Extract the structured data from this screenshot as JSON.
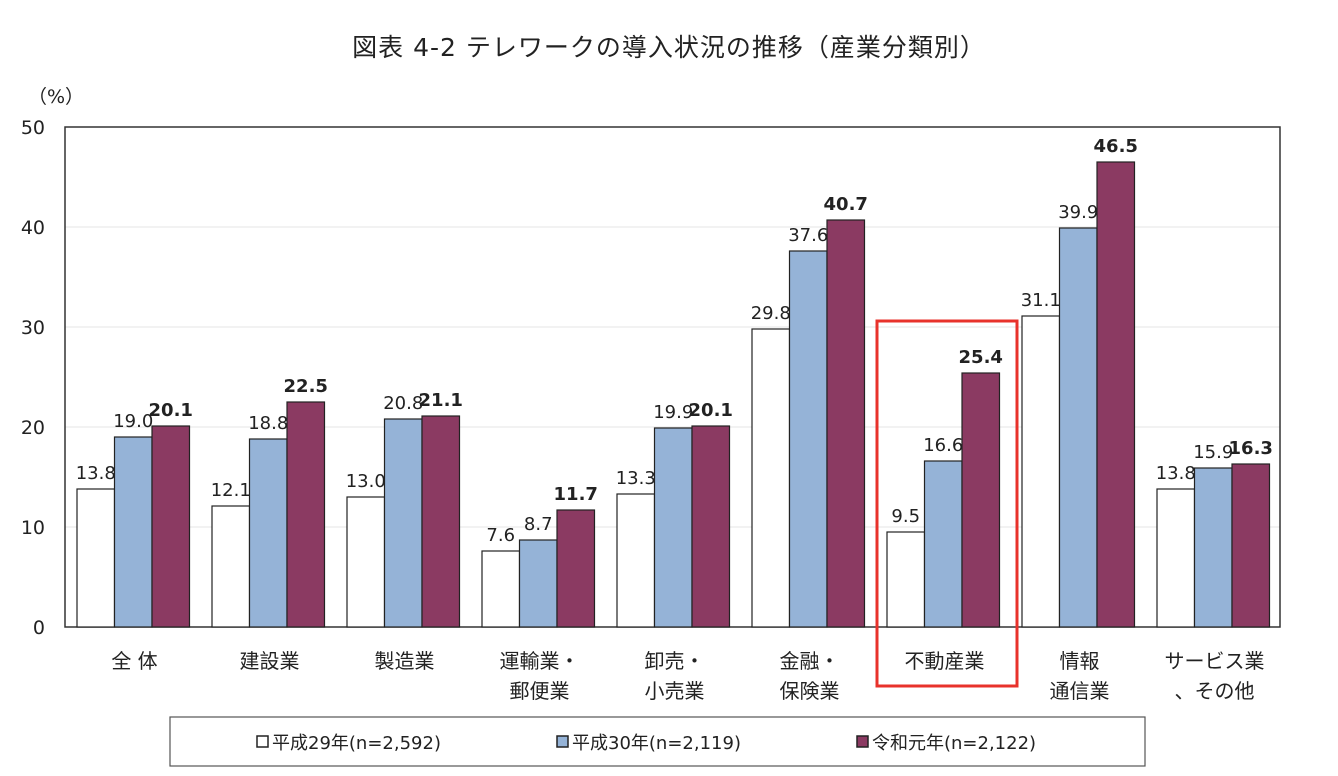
{
  "chart_data": {
    "type": "bar",
    "title": "図表 4-2 テレワークの導入状況の推移（産業分類別）",
    "ylabel": "（%）",
    "ylim": [
      0,
      50
    ],
    "yticks": [
      0,
      10,
      20,
      30,
      40,
      50
    ],
    "grid": true,
    "legend_position": "bottom",
    "categories": [
      [
        "全 体"
      ],
      [
        "建設業"
      ],
      [
        "製造業"
      ],
      [
        "運輸業・",
        "郵便業"
      ],
      [
        "卸売・",
        "小売業"
      ],
      [
        "金融・",
        "保険業"
      ],
      [
        "不動産業"
      ],
      [
        "情報",
        "通信業"
      ],
      [
        "サービス業",
        "、その他"
      ]
    ],
    "highlighted_category": "不動産業",
    "highlight_color": "#e8322b",
    "series": [
      {
        "name": "平成29年(n=2,592)",
        "color": "#ffffff",
        "values": [
          13.8,
          12.1,
          13.0,
          7.6,
          13.3,
          29.8,
          9.5,
          31.1,
          13.8
        ]
      },
      {
        "name": "平成30年(n=2,119)",
        "color": "#95b3d7",
        "values": [
          19.0,
          18.8,
          20.8,
          8.7,
          19.9,
          37.6,
          16.6,
          39.9,
          15.9
        ]
      },
      {
        "name": "令和元年(n=2,122)",
        "color": "#8b3a62",
        "values": [
          20.1,
          22.5,
          21.1,
          11.7,
          20.1,
          40.7,
          25.4,
          46.5,
          16.3
        ],
        "bold_labels": true
      }
    ]
  }
}
